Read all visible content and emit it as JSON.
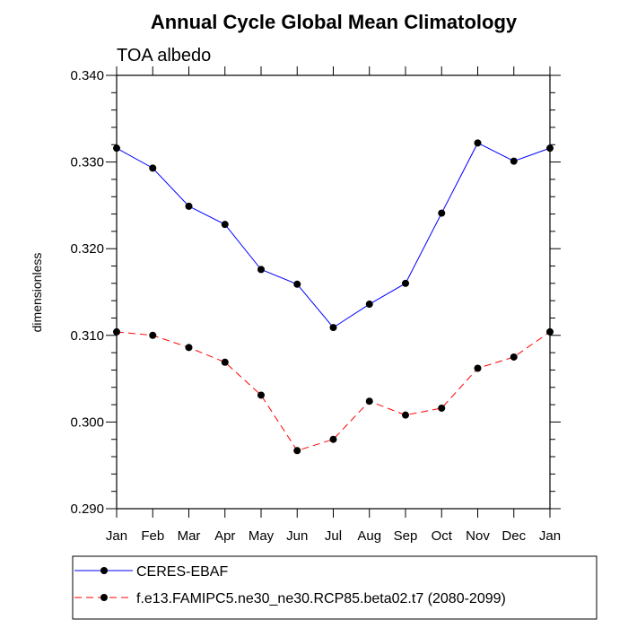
{
  "chart_data": {
    "type": "line",
    "title": "Annual Cycle Global Mean Climatology",
    "subtitle": "TOA albedo",
    "xlabel": "",
    "ylabel": "dimensionless",
    "categories": [
      "Jan",
      "Feb",
      "Mar",
      "Apr",
      "May",
      "Jun",
      "Jul",
      "Aug",
      "Sep",
      "Oct",
      "Nov",
      "Dec",
      "Jan"
    ],
    "ylim": [
      0.29,
      0.34
    ],
    "yticks": [
      "0.290",
      "0.300",
      "0.310",
      "0.320",
      "0.330",
      "0.340"
    ],
    "grid": false,
    "legend_position": "bottom-left",
    "series": [
      {
        "name": "CERES-EBAF",
        "color": "#0000ff",
        "line_style": "solid",
        "marker": "filled-circle",
        "values": [
          0.3316,
          0.3293,
          0.3249,
          0.3228,
          0.3176,
          0.3159,
          0.3109,
          0.3136,
          0.316,
          0.3241,
          0.3322,
          0.3301,
          0.3316
        ]
      },
      {
        "name": "f.e13.FAMIPC5.ne30_ne30.RCP85.beta02.t7 (2080-2099)",
        "color": "#ff0000",
        "line_style": "dashed",
        "marker": "filled-circle",
        "values": [
          0.3104,
          0.31,
          0.3086,
          0.3069,
          0.3031,
          0.2967,
          0.298,
          0.3024,
          0.3008,
          0.3016,
          0.3062,
          0.3075,
          0.3104
        ]
      }
    ]
  }
}
